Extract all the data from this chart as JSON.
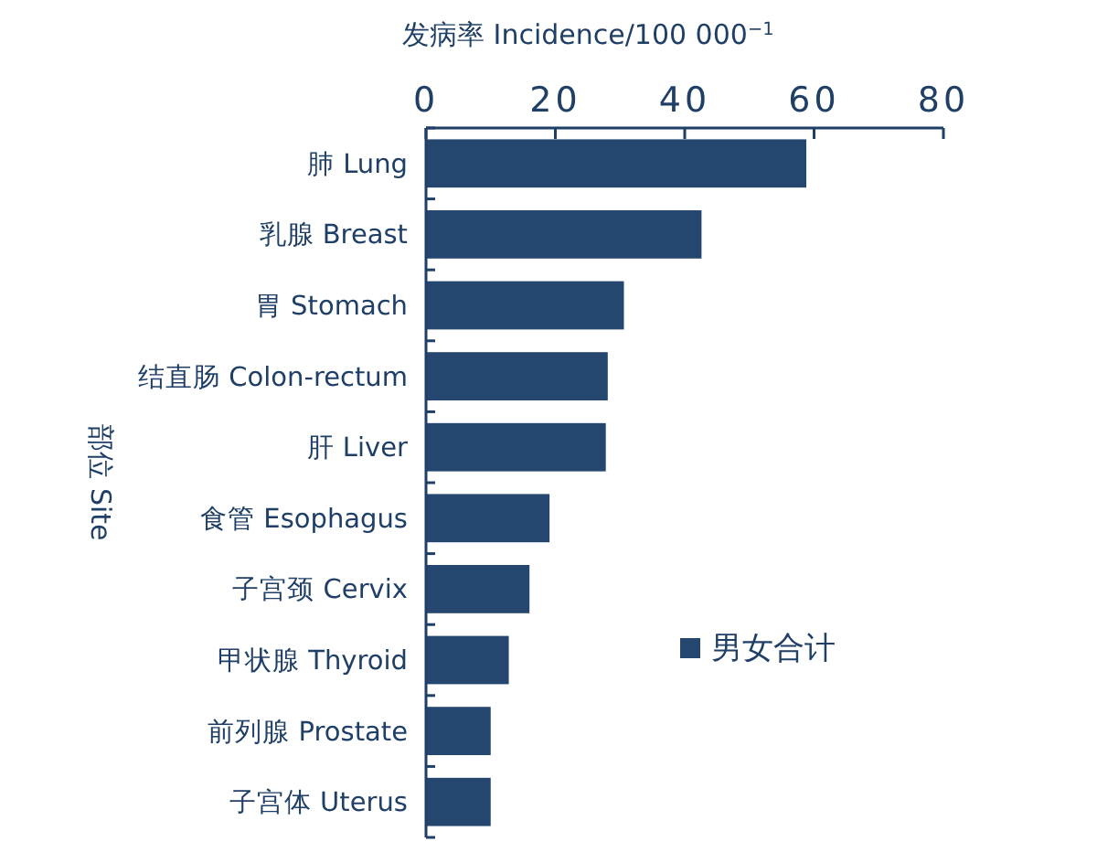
{
  "chart_data": {
    "type": "bar",
    "orientation": "horizontal",
    "xlabel": "发病率 Incidence/100 000$^{−1}$",
    "ylabel": "部位 Site",
    "categories": [
      "肺 Lung",
      "乳腺 Breast",
      "胃 Stomach",
      "结直肠 Colon-rectum",
      "肝 Liver",
      "食管 Esophagus",
      "子宫颈 Cervix",
      "甲状腺 Thyroid",
      "前列腺 Prostate",
      "子宫体 Uterus"
    ],
    "series": [
      {
        "name": "男女合计",
        "color": "#24466f",
        "values": [
          58.8,
          42.6,
          30.6,
          28.1,
          27.8,
          19.1,
          16.0,
          12.8,
          10.0,
          10.0
        ]
      }
    ],
    "xlim": [
      0,
      80
    ],
    "xticks": [
      0,
      20,
      40,
      60,
      80
    ],
    "grid": false,
    "legend": "right"
  }
}
